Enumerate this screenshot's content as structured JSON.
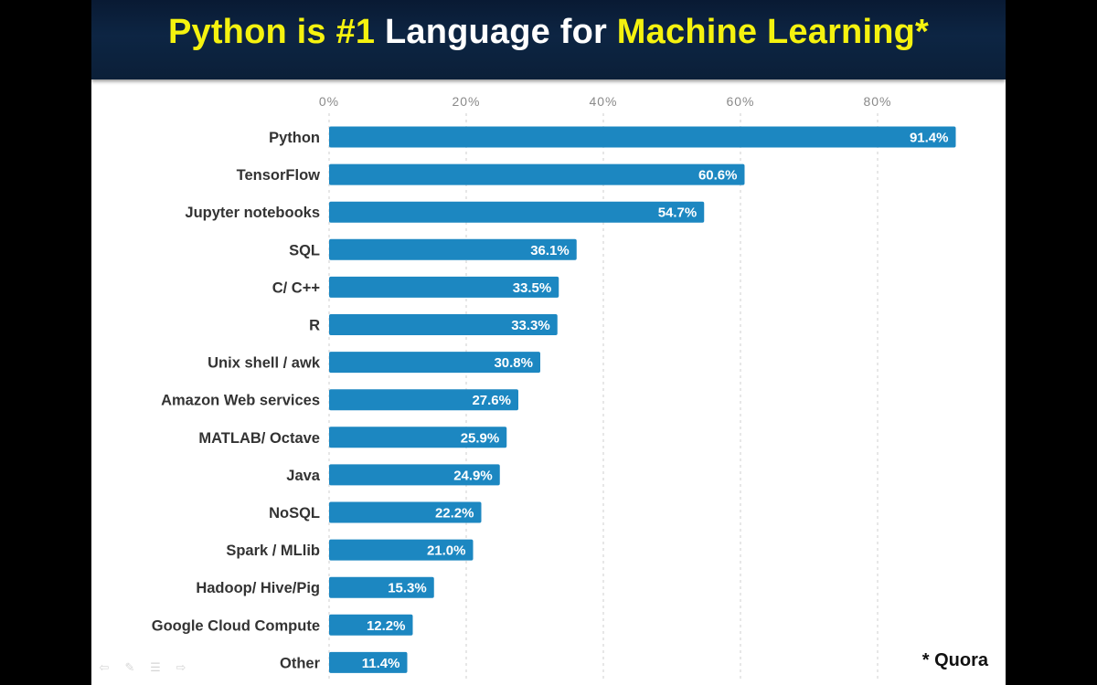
{
  "header": {
    "title_parts": [
      {
        "text": "Python is #1",
        "style": "highlight"
      },
      {
        "text": "Language for",
        "style": "plain"
      },
      {
        "text": "Machine Learning*",
        "style": "highlight"
      }
    ]
  },
  "colors": {
    "bar": "#1c87c1",
    "highlight_text": "#f5f20f",
    "header_bg": "#0d2543"
  },
  "chart_data": {
    "type": "bar",
    "orientation": "horizontal",
    "title": "Python is #1 Language for Machine Learning*",
    "xlabel": "",
    "ylabel": "",
    "xlim": [
      0,
      92
    ],
    "ticks": [
      0,
      20,
      40,
      60,
      80
    ],
    "tick_labels": [
      "0%",
      "20%",
      "40%",
      "60%",
      "80%"
    ],
    "grid": true,
    "categories": [
      "Python",
      "TensorFlow",
      "Jupyter notebooks",
      "SQL",
      "C/ C++",
      "R",
      "Unix shell / awk",
      "Amazon Web services",
      "MATLAB/ Octave",
      "Java",
      "NoSQL",
      "Spark / MLlib",
      "Hadoop/ Hive/Pig",
      "Google Cloud Compute",
      "Other"
    ],
    "values": [
      91.4,
      60.6,
      54.7,
      36.1,
      33.5,
      33.3,
      30.8,
      27.6,
      25.9,
      24.9,
      22.2,
      21.0,
      15.3,
      12.2,
      11.4
    ],
    "value_labels": [
      "91.4%",
      "60.6%",
      "54.7%",
      "36.1%",
      "33.5%",
      "33.3%",
      "30.8%",
      "27.6%",
      "25.9%",
      "24.9%",
      "22.2%",
      "21.0%",
      "15.3%",
      "12.2%",
      "11.4%"
    ]
  },
  "footer": {
    "source": "* Quora"
  },
  "controls": [
    {
      "name": "prev-slide-icon",
      "glyph": "⇦"
    },
    {
      "name": "pen-icon",
      "glyph": "✎"
    },
    {
      "name": "menu-icon",
      "glyph": "☰"
    },
    {
      "name": "next-slide-icon",
      "glyph": "⇨"
    }
  ]
}
